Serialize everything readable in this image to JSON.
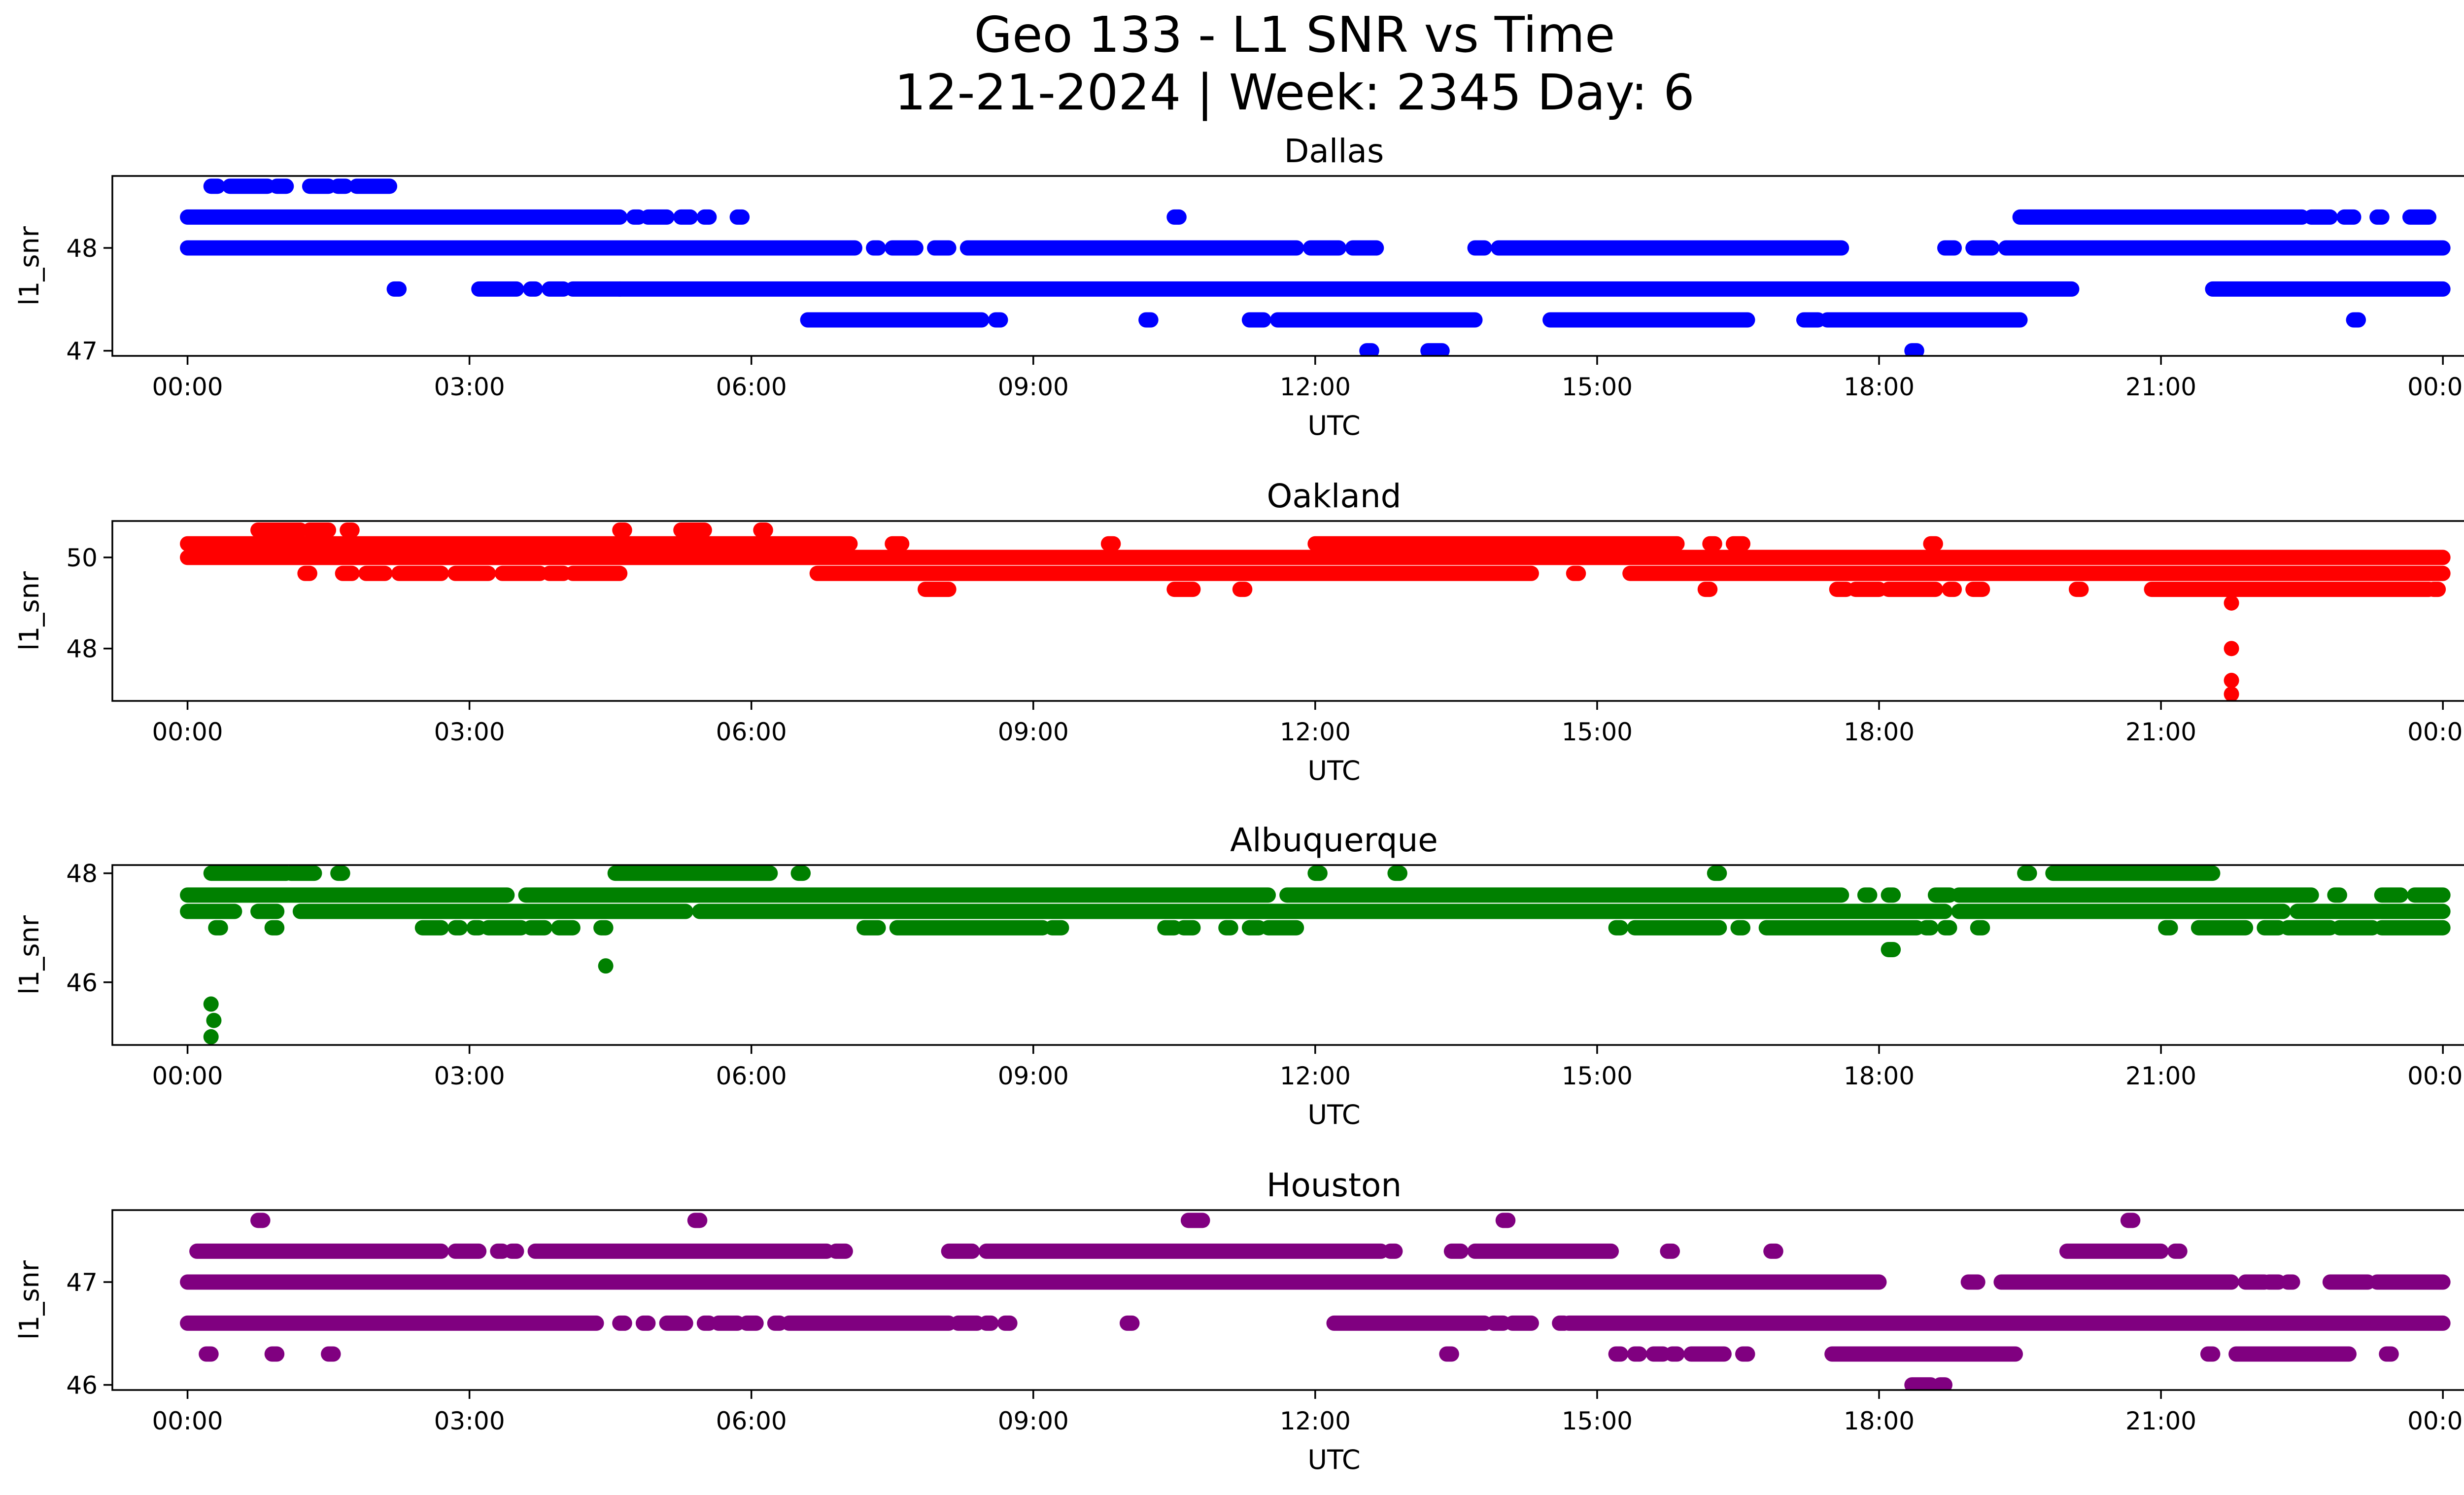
{
  "figure": {
    "title_line1": "Geo 133 - L1 SNR vs Time",
    "title_line2": "12-21-2024 | Week: 2345 Day: 6"
  },
  "chart_data": [
    {
      "type": "scatter",
      "title": "Dallas",
      "xlabel": "UTC",
      "ylabel": "l1_snr",
      "color": "#0000ff",
      "xlim": [
        -0.8,
        25.2
      ],
      "ylim": [
        46.95,
        48.7
      ],
      "xticks": [
        0,
        3,
        6,
        9,
        12,
        15,
        18,
        21,
        24
      ],
      "xtick_labels": [
        "00:00",
        "03:00",
        "06:00",
        "09:00",
        "12:00",
        "15:00",
        "18:00",
        "21:00",
        "00:00"
      ],
      "yticks": [
        47,
        48
      ],
      "ytick_labels": [
        "47",
        "48"
      ],
      "bands": [
        {
          "y": 48.6,
          "ranges": [
            [
              0.25,
              0.32
            ],
            [
              0.45,
              0.85
            ],
            [
              0.95,
              1.05
            ],
            [
              1.3,
              1.5
            ],
            [
              1.6,
              1.68
            ],
            [
              1.8,
              2.15
            ]
          ]
        },
        {
          "y": 48.3,
          "ranges": [
            [
              0.0,
              4.6
            ],
            [
              4.75,
              4.8
            ],
            [
              4.9,
              5.1
            ],
            [
              5.25,
              5.35
            ],
            [
              5.5,
              5.55
            ],
            [
              5.85,
              5.9
            ],
            [
              10.5,
              10.55
            ],
            [
              19.5,
              22.5
            ],
            [
              22.6,
              22.8
            ],
            [
              22.95,
              23.05
            ],
            [
              23.3,
              23.35
            ],
            [
              23.65,
              23.85
            ]
          ]
        },
        {
          "y": 48.0,
          "ranges": [
            [
              0.0,
              7.1
            ],
            [
              7.3,
              7.35
            ],
            [
              7.5,
              7.75
            ],
            [
              7.95,
              8.1
            ],
            [
              8.3,
              11.8
            ],
            [
              11.95,
              12.25
            ],
            [
              12.4,
              12.65
            ],
            [
              13.7,
              13.8
            ],
            [
              13.95,
              17.6
            ],
            [
              18.7,
              18.8
            ],
            [
              19.0,
              19.2
            ],
            [
              19.35,
              24.0
            ]
          ]
        },
        {
          "y": 47.6,
          "ranges": [
            [
              2.2,
              2.25
            ],
            [
              3.1,
              3.5
            ],
            [
              3.65,
              3.7
            ],
            [
              3.85,
              4.0
            ],
            [
              4.1,
              4.6
            ],
            [
              4.6,
              20.05
            ],
            [
              21.55,
              24.0
            ]
          ]
        },
        {
          "y": 47.3,
          "ranges": [
            [
              6.6,
              8.45
            ],
            [
              8.6,
              8.65
            ],
            [
              10.2,
              10.25
            ],
            [
              11.3,
              11.45
            ],
            [
              11.6,
              13.7
            ],
            [
              14.5,
              16.6
            ],
            [
              17.2,
              17.35
            ],
            [
              17.45,
              19.5
            ],
            [
              23.05,
              23.1
            ]
          ]
        },
        {
          "y": 47.0,
          "ranges": [
            [
              12.55,
              12.6
            ],
            [
              13.2,
              13.35
            ],
            [
              18.35,
              18.4
            ]
          ]
        }
      ]
    },
    {
      "type": "scatter",
      "title": "Oakland",
      "xlabel": "UTC",
      "ylabel": "l1_snr",
      "color": "#ff0000",
      "xlim": [
        -0.8,
        25.2
      ],
      "ylim": [
        46.85,
        50.8
      ],
      "xticks": [
        0,
        3,
        6,
        9,
        12,
        15,
        18,
        21,
        24
      ],
      "xtick_labels": [
        "00:00",
        "03:00",
        "06:00",
        "09:00",
        "12:00",
        "15:00",
        "18:00",
        "21:00",
        "00:00"
      ],
      "yticks": [
        48,
        50
      ],
      "ytick_labels": [
        "48",
        "50"
      ],
      "bands": [
        {
          "y": 50.6,
          "ranges": [
            [
              0.75,
              1.2
            ],
            [
              1.3,
              1.5
            ],
            [
              1.7,
              1.75
            ],
            [
              4.6,
              4.65
            ],
            [
              5.25,
              5.5
            ],
            [
              6.1,
              6.15
            ]
          ]
        },
        {
          "y": 50.3,
          "ranges": [
            [
              0.0,
              7.05
            ],
            [
              7.5,
              7.6
            ],
            [
              9.8,
              9.85
            ],
            [
              12.0,
              15.85
            ],
            [
              16.2,
              16.25
            ],
            [
              16.45,
              16.55
            ],
            [
              18.55,
              18.6
            ]
          ]
        },
        {
          "y": 50.0,
          "ranges": [
            [
              0.0,
              24.0
            ]
          ]
        },
        {
          "y": 49.65,
          "ranges": [
            [
              1.25,
              1.3
            ],
            [
              1.65,
              1.75
            ],
            [
              1.9,
              2.1
            ],
            [
              2.25,
              2.7
            ],
            [
              2.85,
              3.2
            ],
            [
              3.35,
              3.75
            ],
            [
              3.85,
              4.0
            ],
            [
              4.1,
              4.6
            ],
            [
              6.7,
              14.3
            ],
            [
              14.75,
              14.8
            ],
            [
              15.35,
              24.0
            ]
          ]
        },
        {
          "y": 49.3,
          "ranges": [
            [
              7.85,
              8.1
            ],
            [
              10.5,
              10.7
            ],
            [
              11.2,
              11.25
            ],
            [
              16.15,
              16.2
            ],
            [
              17.55,
              17.65
            ],
            [
              17.75,
              18.0
            ],
            [
              18.1,
              18.6
            ],
            [
              18.75,
              18.8
            ],
            [
              19.0,
              19.1
            ],
            [
              20.1,
              20.15
            ],
            [
              20.9,
              23.85
            ],
            [
              23.9,
              23.95
            ]
          ]
        },
        {
          "y": 49.0,
          "ranges": [
            [
              21.75,
              21.75
            ]
          ]
        },
        {
          "y": 48.0,
          "ranges": [
            [
              21.75,
              21.75
            ]
          ]
        },
        {
          "y": 47.3,
          "ranges": [
            [
              21.75,
              21.75
            ]
          ]
        },
        {
          "y": 47.0,
          "ranges": [
            [
              21.75,
              21.75
            ]
          ]
        }
      ]
    },
    {
      "type": "scatter",
      "title": "Albuquerque",
      "xlabel": "UTC",
      "ylabel": "l1_snr",
      "color": "#008000",
      "xlim": [
        -0.8,
        25.2
      ],
      "ylim": [
        44.85,
        48.15
      ],
      "xticks": [
        0,
        3,
        6,
        9,
        12,
        15,
        18,
        21,
        24
      ],
      "xtick_labels": [
        "00:00",
        "03:00",
        "06:00",
        "09:00",
        "12:00",
        "15:00",
        "18:00",
        "21:00",
        "00:00"
      ],
      "yticks": [
        46,
        48
      ],
      "ytick_labels": [
        "46",
        "48"
      ],
      "bands": [
        {
          "y": 48.0,
          "ranges": [
            [
              0.25,
              1.05
            ],
            [
              1.1,
              1.35
            ],
            [
              1.6,
              1.65
            ],
            [
              4.55,
              6.2
            ],
            [
              6.5,
              6.55
            ],
            [
              12.0,
              12.05
            ],
            [
              12.85,
              12.9
            ],
            [
              16.25,
              16.3
            ],
            [
              19.55,
              19.6
            ],
            [
              19.85,
              21.55
            ]
          ]
        },
        {
          "y": 47.6,
          "ranges": [
            [
              0.0,
              3.4
            ],
            [
              3.6,
              11.5
            ],
            [
              11.7,
              17.6
            ],
            [
              17.85,
              17.9
            ],
            [
              18.1,
              18.15
            ],
            [
              18.6,
              18.75
            ],
            [
              18.85,
              22.6
            ],
            [
              22.85,
              22.9
            ],
            [
              23.35,
              23.55
            ],
            [
              23.7,
              24.0
            ]
          ]
        },
        {
          "y": 47.3,
          "ranges": [
            [
              0.0,
              0.5
            ],
            [
              0.75,
              0.95
            ],
            [
              1.2,
              5.3
            ],
            [
              5.45,
              18.7
            ],
            [
              18.85,
              22.3
            ],
            [
              22.45,
              24.0
            ]
          ]
        },
        {
          "y": 47.0,
          "ranges": [
            [
              0.3,
              0.35
            ],
            [
              0.9,
              0.95
            ],
            [
              2.5,
              2.7
            ],
            [
              2.85,
              2.9
            ],
            [
              3.05,
              3.1
            ],
            [
              3.2,
              3.55
            ],
            [
              3.65,
              3.8
            ],
            [
              3.95,
              4.1
            ],
            [
              4.4,
              4.45
            ],
            [
              7.2,
              7.35
            ],
            [
              7.55,
              9.1
            ],
            [
              9.2,
              9.3
            ],
            [
              10.4,
              10.5
            ],
            [
              10.6,
              10.7
            ],
            [
              11.05,
              11.1
            ],
            [
              11.3,
              11.4
            ],
            [
              11.5,
              11.8
            ],
            [
              15.2,
              15.25
            ],
            [
              15.4,
              16.3
            ],
            [
              16.5,
              16.55
            ],
            [
              16.8,
              18.4
            ],
            [
              18.5,
              18.55
            ],
            [
              18.7,
              18.75
            ],
            [
              19.05,
              19.1
            ],
            [
              21.05,
              21.1
            ],
            [
              21.4,
              21.9
            ],
            [
              22.1,
              22.25
            ],
            [
              22.35,
              22.8
            ],
            [
              22.9,
              23.25
            ],
            [
              23.35,
              24.0
            ]
          ]
        },
        {
          "y": 46.6,
          "ranges": [
            [
              18.1,
              18.15
            ]
          ]
        },
        {
          "y": 46.3,
          "ranges": [
            [
              4.45,
              4.45
            ]
          ]
        },
        {
          "y": 45.6,
          "ranges": [
            [
              0.25,
              0.25
            ]
          ]
        },
        {
          "y": 45.3,
          "ranges": [
            [
              0.28,
              0.28
            ]
          ]
        },
        {
          "y": 45.0,
          "ranges": [
            [
              0.25,
              0.25
            ]
          ]
        }
      ]
    },
    {
      "type": "scatter",
      "title": "Houston",
      "xlabel": "UTC",
      "ylabel": "l1_snr",
      "color": "#800080",
      "xlim": [
        -0.8,
        25.2
      ],
      "ylim": [
        45.95,
        47.7
      ],
      "xticks": [
        0,
        3,
        6,
        9,
        12,
        15,
        18,
        21,
        24
      ],
      "xtick_labels": [
        "00:00",
        "03:00",
        "06:00",
        "09:00",
        "12:00",
        "15:00",
        "18:00",
        "21:00",
        "00:00"
      ],
      "yticks": [
        46,
        47
      ],
      "ytick_labels": [
        "46",
        "47"
      ],
      "bands": [
        {
          "y": 47.6,
          "ranges": [
            [
              0.75,
              0.8
            ],
            [
              5.4,
              5.45
            ],
            [
              10.65,
              10.8
            ],
            [
              14.0,
              14.05
            ],
            [
              20.65,
              20.7
            ]
          ]
        },
        {
          "y": 47.3,
          "ranges": [
            [
              0.1,
              2.7
            ],
            [
              2.85,
              3.1
            ],
            [
              3.3,
              3.35
            ],
            [
              3.45,
              3.5
            ],
            [
              3.7,
              6.8
            ],
            [
              6.9,
              7.0
            ],
            [
              8.1,
              8.35
            ],
            [
              8.5,
              12.7
            ],
            [
              12.8,
              12.85
            ],
            [
              13.45,
              13.55
            ],
            [
              13.7,
              15.15
            ],
            [
              15.75,
              15.8
            ],
            [
              16.85,
              16.9
            ],
            [
              20.0,
              21.0
            ],
            [
              21.15,
              21.2
            ]
          ]
        },
        {
          "y": 47.0,
          "ranges": [
            [
              0.0,
              18.0
            ],
            [
              18.95,
              19.05
            ],
            [
              19.3,
              21.75
            ],
            [
              21.9,
              22.1
            ],
            [
              22.15,
              22.25
            ],
            [
              22.35,
              22.4
            ],
            [
              22.8,
              23.2
            ],
            [
              23.3,
              24.0
            ]
          ]
        },
        {
          "y": 46.6,
          "ranges": [
            [
              0.0,
              4.35
            ],
            [
              4.6,
              4.65
            ],
            [
              4.85,
              4.9
            ],
            [
              5.1,
              5.3
            ],
            [
              5.5,
              5.55
            ],
            [
              5.65,
              5.85
            ],
            [
              5.95,
              6.05
            ],
            [
              6.25,
              6.3
            ],
            [
              6.4,
              8.1
            ],
            [
              8.2,
              8.4
            ],
            [
              8.5,
              8.55
            ],
            [
              8.7,
              8.75
            ],
            [
              10.0,
              10.05
            ],
            [
              12.2,
              13.8
            ],
            [
              13.9,
              14.0
            ],
            [
              14.1,
              14.3
            ],
            [
              14.6,
              14.65
            ],
            [
              14.7,
              24.0
            ]
          ]
        },
        {
          "y": 46.3,
          "ranges": [
            [
              0.2,
              0.25
            ],
            [
              0.9,
              0.95
            ],
            [
              1.5,
              1.55
            ],
            [
              13.4,
              13.45
            ],
            [
              15.2,
              15.25
            ],
            [
              15.4,
              15.45
            ],
            [
              15.6,
              15.7
            ],
            [
              15.8,
              15.85
            ],
            [
              16.0,
              16.35
            ],
            [
              16.55,
              16.6
            ],
            [
              17.5,
              19.45
            ],
            [
              21.5,
              21.55
            ],
            [
              21.8,
              23.0
            ],
            [
              23.4,
              23.45
            ]
          ]
        },
        {
          "y": 46.0,
          "ranges": [
            [
              18.35,
              18.55
            ],
            [
              18.65,
              18.7
            ]
          ]
        }
      ]
    }
  ]
}
